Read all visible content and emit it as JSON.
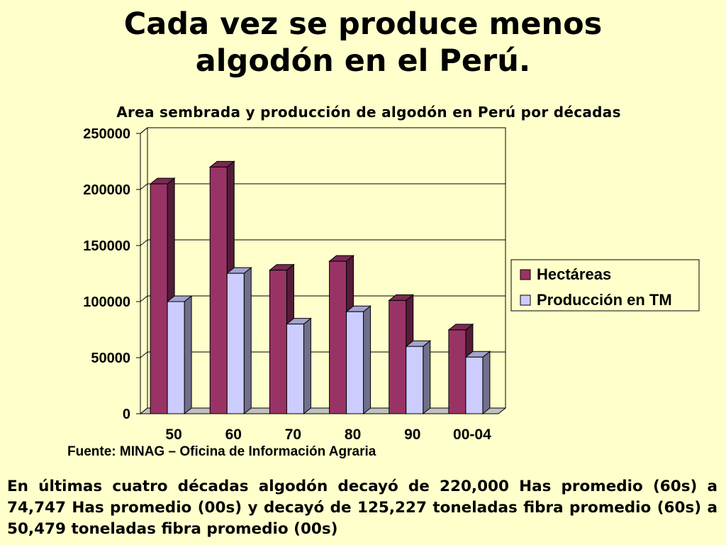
{
  "slide": {
    "title_line1": "Cada vez se produce menos",
    "title_line2": "algodón en el Perú.",
    "source": "Fuente: MINAG – Oficina de Información Agraria",
    "summary": "En últimas cuatro décadas algodón decayó de 220,000 Has promedio (60s) a 74,747 Has promedio (00s) y decayó de 125,227 toneladas fibra promedio (60s) a 50,479 toneladas fibra promedio (00s)"
  },
  "chart_data": {
    "type": "bar",
    "title": "Area sembrada y producción de algodón en Perú por décadas",
    "categories": [
      "50",
      "60",
      "70",
      "80",
      "90",
      "00-04"
    ],
    "series": [
      {
        "name": "Hectáreas",
        "values": [
          205000,
          220000,
          128000,
          136000,
          101000,
          74747
        ],
        "color": "#993366"
      },
      {
        "name": "Producción en TM",
        "values": [
          100000,
          125227,
          80000,
          91000,
          60000,
          50479
        ],
        "color": "#ccccff"
      }
    ],
    "ylim": [
      0,
      250000
    ],
    "yticks": [
      "0",
      "50000",
      "100000",
      "150000",
      "200000",
      "250000"
    ],
    "grid": true,
    "legend_position": "right",
    "three_d": true
  }
}
